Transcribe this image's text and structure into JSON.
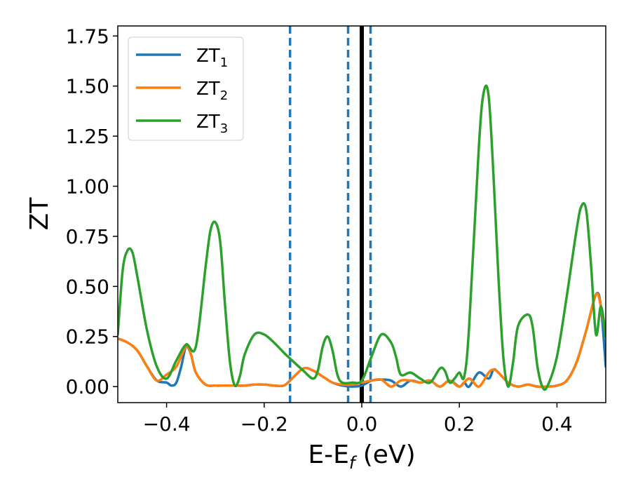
{
  "chart_data": {
    "type": "line",
    "xlabel": "E-E",
    "xlabel_sub": "f",
    "xlabel_unit": " (eV)",
    "ylabel": "ZT",
    "xlim": [
      -0.5,
      0.5
    ],
    "ylim": [
      -0.08,
      1.8
    ],
    "xticks": [
      -0.4,
      -0.2,
      0.0,
      0.2,
      0.4
    ],
    "xtick_labels": [
      "−0.4",
      "−0.2",
      "0.0",
      "0.2",
      "0.4"
    ],
    "yticks": [
      0.0,
      0.25,
      0.5,
      0.75,
      1.0,
      1.25,
      1.5,
      1.75
    ],
    "ytick_labels": [
      "0.00",
      "0.25",
      "0.50",
      "0.75",
      "1.00",
      "1.25",
      "1.50",
      "1.75"
    ],
    "grid": false,
    "legend_position": "top-left",
    "vlines": [
      {
        "x": -0.147,
        "style": "dashed",
        "color": "#1f77b4"
      },
      {
        "x": -0.028,
        "style": "dashed",
        "color": "#1f77b4"
      },
      {
        "x": 0.0,
        "style": "solid",
        "color": "#000000"
      },
      {
        "x": 0.018,
        "style": "dashed",
        "color": "#1f77b4"
      }
    ],
    "series": [
      {
        "name": "ZT",
        "sub": "1",
        "color": "#1f77b4",
        "x": [
          -0.5,
          -0.48,
          -0.46,
          -0.44,
          -0.42,
          -0.4,
          -0.39,
          -0.38,
          -0.37,
          -0.36,
          -0.35,
          -0.34,
          -0.32,
          -0.3,
          -0.28,
          -0.26,
          -0.24,
          -0.22,
          -0.2,
          -0.18,
          -0.16,
          -0.147,
          -0.12,
          -0.1,
          -0.08,
          -0.06,
          -0.04,
          -0.02,
          0.0,
          0.02,
          0.04,
          0.06,
          0.08,
          0.1,
          0.12,
          0.14,
          0.16,
          0.18,
          0.2,
          0.21,
          0.22,
          0.24,
          0.26,
          0.27,
          0.28,
          0.3,
          0.32,
          0.34,
          0.36,
          0.38,
          0.4,
          0.42,
          0.44,
          0.46,
          0.48,
          0.49,
          0.5
        ],
        "y": [
          0.24,
          0.22,
          0.18,
          0.1,
          0.03,
          0.02,
          0.005,
          0.02,
          0.1,
          0.2,
          0.16,
          0.07,
          0.01,
          0.005,
          0.005,
          0.005,
          0.005,
          0.01,
          0.01,
          0.005,
          0.005,
          0.03,
          0.09,
          0.08,
          0.05,
          0.02,
          0.005,
          0.0,
          0.005,
          0.03,
          0.035,
          0.03,
          0.0,
          0.03,
          0.02,
          0.03,
          0.0,
          0.03,
          0.0,
          0.02,
          0.0,
          0.07,
          0.04,
          0.085,
          0.07,
          0.02,
          0.0,
          0.01,
          0.0,
          0.0,
          0.005,
          0.03,
          0.12,
          0.28,
          0.46,
          0.4,
          0.1
        ]
      },
      {
        "name": "ZT",
        "sub": "2",
        "color": "#ff7f0e",
        "x": [
          -0.5,
          -0.48,
          -0.46,
          -0.44,
          -0.42,
          -0.4,
          -0.38,
          -0.36,
          -0.35,
          -0.34,
          -0.32,
          -0.3,
          -0.28,
          -0.26,
          -0.24,
          -0.22,
          -0.2,
          -0.18,
          -0.16,
          -0.147,
          -0.12,
          -0.1,
          -0.08,
          -0.06,
          -0.04,
          -0.02,
          0.0,
          0.02,
          0.04,
          0.06,
          0.08,
          0.1,
          0.12,
          0.14,
          0.16,
          0.18,
          0.2,
          0.22,
          0.24,
          0.26,
          0.27,
          0.28,
          0.3,
          0.32,
          0.34,
          0.36,
          0.38,
          0.4,
          0.42,
          0.44,
          0.46,
          0.48,
          0.49,
          0.5
        ],
        "y": [
          0.24,
          0.22,
          0.18,
          0.1,
          0.03,
          0.06,
          0.1,
          0.2,
          0.16,
          0.07,
          0.01,
          0.005,
          0.005,
          0.005,
          0.005,
          0.01,
          0.01,
          0.005,
          0.005,
          0.03,
          0.09,
          0.08,
          0.05,
          0.02,
          0.01,
          0.01,
          0.02,
          0.03,
          0.035,
          0.0,
          0.03,
          0.03,
          0.02,
          0.03,
          0.0,
          0.03,
          0.0,
          0.04,
          0.0,
          0.07,
          0.085,
          0.07,
          0.02,
          0.0,
          0.01,
          0.0,
          0.0,
          0.005,
          0.03,
          0.12,
          0.28,
          0.46,
          0.4,
          0.25
        ]
      },
      {
        "name": "ZT",
        "sub": "3",
        "color": "#2ca02c",
        "x": [
          -0.5,
          -0.49,
          -0.48,
          -0.47,
          -0.46,
          -0.44,
          -0.42,
          -0.4,
          -0.38,
          -0.36,
          -0.34,
          -0.32,
          -0.31,
          -0.3,
          -0.29,
          -0.28,
          -0.27,
          -0.26,
          -0.25,
          -0.24,
          -0.22,
          -0.2,
          -0.18,
          -0.16,
          -0.147,
          -0.12,
          -0.1,
          -0.09,
          -0.08,
          -0.07,
          -0.06,
          -0.05,
          -0.04,
          -0.02,
          0.0,
          0.02,
          0.04,
          0.06,
          0.07,
          0.08,
          0.1,
          0.12,
          0.14,
          0.16,
          0.17,
          0.18,
          0.19,
          0.2,
          0.21,
          0.22,
          0.24,
          0.25,
          0.26,
          0.27,
          0.28,
          0.29,
          0.3,
          0.31,
          0.32,
          0.34,
          0.35,
          0.36,
          0.37,
          0.38,
          0.4,
          0.42,
          0.44,
          0.45,
          0.46,
          0.47,
          0.48,
          0.49,
          0.5
        ],
        "y": [
          0.26,
          0.58,
          0.68,
          0.67,
          0.55,
          0.28,
          0.1,
          0.04,
          0.13,
          0.21,
          0.2,
          0.6,
          0.78,
          0.82,
          0.72,
          0.4,
          0.12,
          0.005,
          0.05,
          0.16,
          0.26,
          0.26,
          0.22,
          0.17,
          0.14,
          0.08,
          0.04,
          0.08,
          0.2,
          0.25,
          0.18,
          0.06,
          0.02,
          0.02,
          0.03,
          0.15,
          0.26,
          0.22,
          0.15,
          0.06,
          0.07,
          0.04,
          0.02,
          0.09,
          0.08,
          0.02,
          0.04,
          0.07,
          0.05,
          0.3,
          1.2,
          1.47,
          1.45,
          1.05,
          0.55,
          0.15,
          0.0,
          0.12,
          0.3,
          0.36,
          0.3,
          0.1,
          0.0,
          0.0,
          0.15,
          0.45,
          0.78,
          0.9,
          0.88,
          0.6,
          0.26,
          0.4,
          0.25
        ]
      }
    ]
  }
}
